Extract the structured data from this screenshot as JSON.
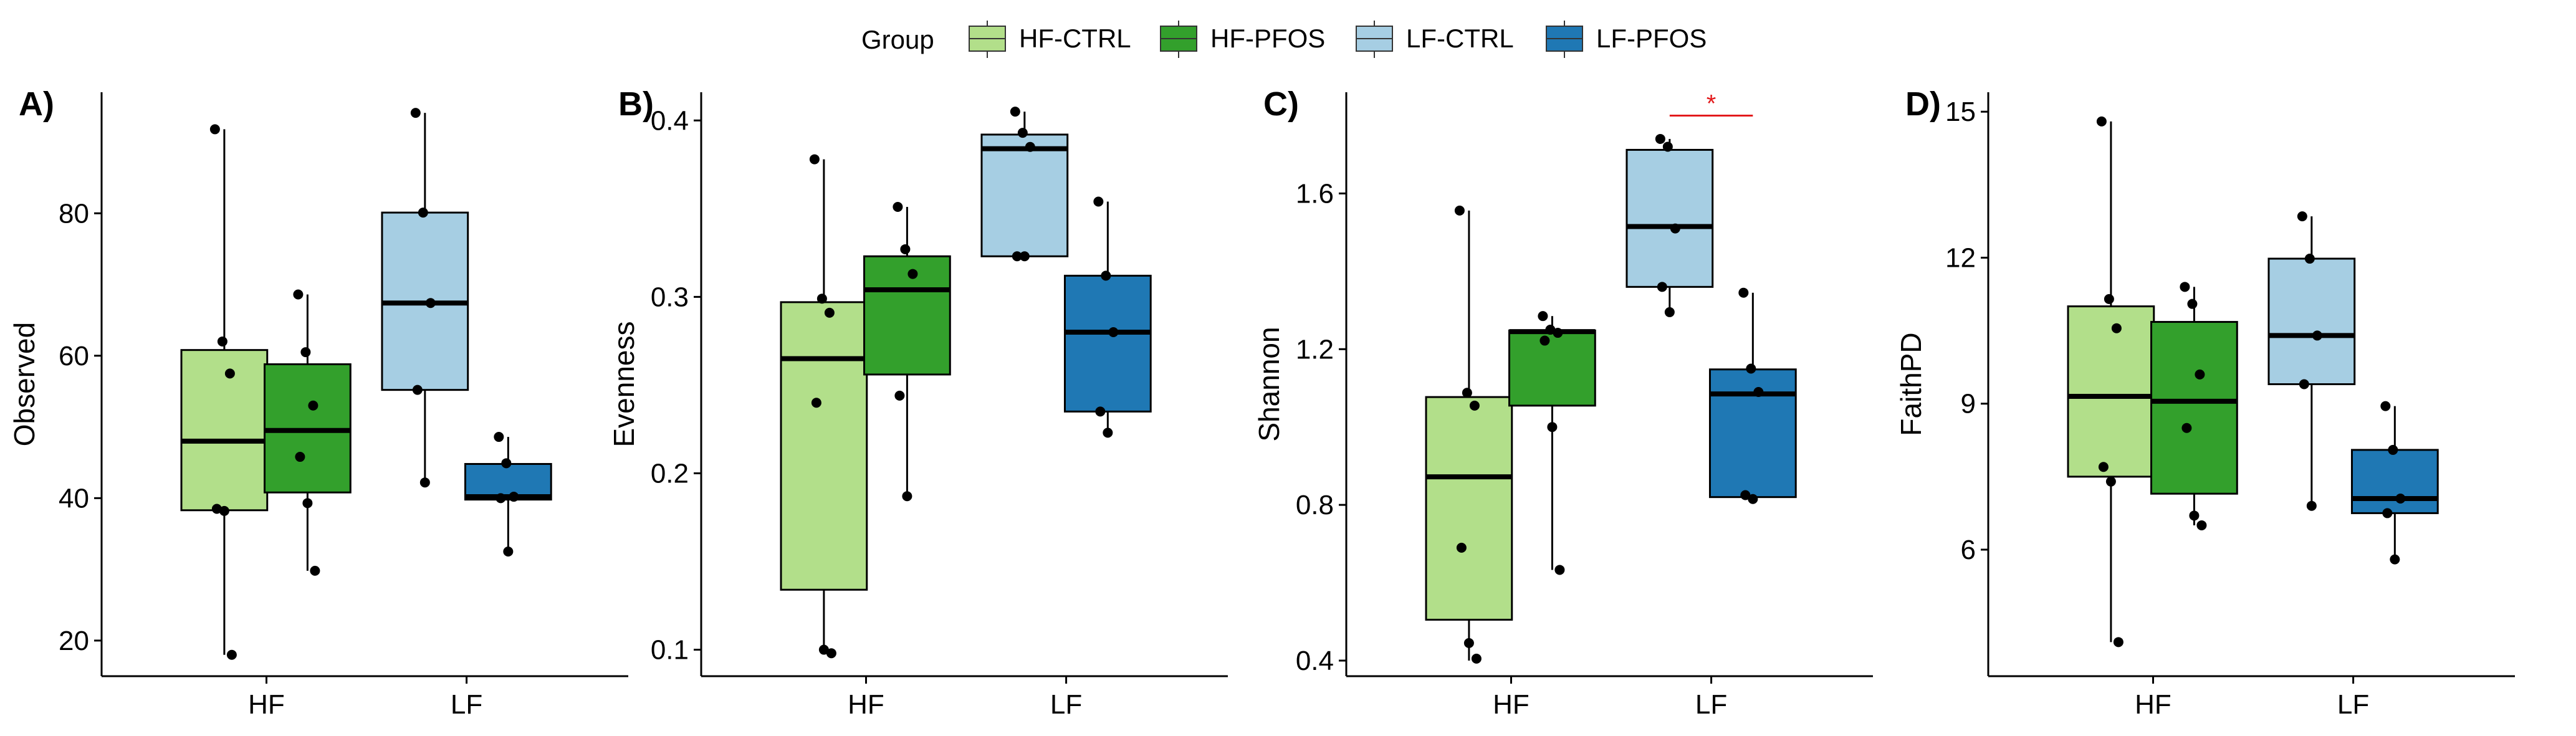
{
  "legend": {
    "title": "Group",
    "items": [
      {
        "label": "HF-CTRL",
        "color": "#b2df8a"
      },
      {
        "label": "HF-PFOS",
        "color": "#33a02c"
      },
      {
        "label": "LF-CTRL",
        "color": "#a6cee3"
      },
      {
        "label": "LF-PFOS",
        "color": "#1f78b4"
      }
    ]
  },
  "chart_data": [
    {
      "type": "box",
      "panel": "A)",
      "ylabel": "Observed",
      "xlabel": "",
      "categories": [
        "HF",
        "LF"
      ],
      "yticks": [
        20,
        40,
        60,
        80
      ],
      "ylim": [
        15,
        97
      ],
      "series": [
        {
          "name": "HF-CTRL",
          "category": "HF",
          "min": 18,
          "q1": 38.3,
          "median": 48,
          "q3": 60.8,
          "max": 91.8,
          "points": [
            91.8,
            62,
            57.5,
            38.5,
            38.2,
            18
          ]
        },
        {
          "name": "HF-PFOS",
          "category": "HF",
          "min": 29.8,
          "q1": 40.8,
          "median": 49.5,
          "q3": 58.8,
          "max": 68.6,
          "points": [
            68.6,
            60.5,
            53,
            45.8,
            39.3,
            29.8
          ]
        },
        {
          "name": "LF-CTRL",
          "category": "LF",
          "min": 42.2,
          "q1": 55.2,
          "median": 67.4,
          "q3": 80.1,
          "max": 94.1,
          "points": [
            94.1,
            80.1,
            67.4,
            55.2,
            42.2
          ]
        },
        {
          "name": "LF-PFOS",
          "category": "LF",
          "min": 32.5,
          "q1": 39.8,
          "median": 40.2,
          "q3": 44.8,
          "max": 48.6,
          "points": [
            48.6,
            44.9,
            40.2,
            40,
            32.5
          ]
        }
      ]
    },
    {
      "type": "box",
      "panel": "B)",
      "ylabel": "Evenness",
      "xlabel": "",
      "categories": [
        "HF",
        "LF"
      ],
      "yticks": [
        0.1,
        0.2,
        0.3,
        0.4
      ],
      "ylim": [
        0.085,
        0.416
      ],
      "series": [
        {
          "name": "HF-CTRL",
          "category": "HF",
          "min": 0.098,
          "q1": 0.134,
          "median": 0.265,
          "q3": 0.297,
          "max": 0.378,
          "points": [
            0.378,
            0.299,
            0.291,
            0.24,
            0.1,
            0.098
          ]
        },
        {
          "name": "HF-PFOS",
          "category": "HF",
          "min": 0.187,
          "q1": 0.256,
          "median": 0.304,
          "q3": 0.323,
          "max": 0.351,
          "points": [
            0.351,
            0.327,
            0.313,
            0.244,
            0.187
          ]
        },
        {
          "name": "LF-CTRL",
          "category": "LF",
          "min": 0.323,
          "q1": 0.323,
          "median": 0.384,
          "q3": 0.392,
          "max": 0.405,
          "points": [
            0.405,
            0.393,
            0.385,
            0.323,
            0.323
          ]
        },
        {
          "name": "LF-PFOS",
          "category": "LF",
          "min": 0.223,
          "q1": 0.235,
          "median": 0.28,
          "q3": 0.312,
          "max": 0.354,
          "points": [
            0.354,
            0.312,
            0.28,
            0.235,
            0.223
          ]
        }
      ]
    },
    {
      "type": "box",
      "panel": "C)",
      "ylabel": "Shannon",
      "xlabel": "",
      "categories": [
        "HF",
        "LF"
      ],
      "yticks": [
        0.4,
        0.8,
        1.2,
        1.6
      ],
      "ylim": [
        0.36,
        1.86
      ],
      "significance": {
        "label": "*",
        "from": "LF-CTRL",
        "to": "LF-PFOS",
        "y": 1.8
      },
      "series": [
        {
          "name": "HF-CTRL",
          "category": "HF",
          "min": 0.4,
          "q1": 0.505,
          "median": 0.872,
          "q3": 1.077,
          "max": 1.556,
          "points": [
            1.556,
            1.088,
            1.055,
            0.69,
            0.445,
            0.405
          ]
        },
        {
          "name": "HF-PFOS",
          "category": "HF",
          "min": 0.633,
          "q1": 1.055,
          "median": 1.245,
          "q3": 1.248,
          "max": 1.285,
          "points": [
            1.285,
            1.25,
            1.242,
            1.222,
            1.0,
            0.633
          ]
        },
        {
          "name": "LF-CTRL",
          "category": "LF",
          "min": 1.295,
          "q1": 1.36,
          "median": 1.515,
          "q3": 1.712,
          "max": 1.74,
          "points": [
            1.74,
            1.72,
            1.51,
            1.36,
            1.295
          ]
        },
        {
          "name": "LF-PFOS",
          "category": "LF",
          "min": 0.815,
          "q1": 0.82,
          "median": 1.085,
          "q3": 1.148,
          "max": 1.345,
          "points": [
            1.345,
            1.15,
            1.09,
            0.825,
            0.815
          ]
        }
      ]
    },
    {
      "type": "box",
      "panel": "D)",
      "ylabel": "FaithPD",
      "xlabel": "",
      "categories": [
        "HF",
        "LF"
      ],
      "yticks": [
        6,
        9,
        12,
        15
      ],
      "ylim": [
        3.4,
        15.4
      ],
      "series": [
        {
          "name": "HF-CTRL",
          "category": "HF",
          "min": 4.1,
          "q1": 7.5,
          "median": 9.15,
          "q3": 11.0,
          "max": 14.8,
          "points": [
            14.8,
            11.15,
            10.55,
            7.7,
            7.4,
            4.1
          ]
        },
        {
          "name": "HF-PFOS",
          "category": "HF",
          "min": 6.5,
          "q1": 7.15,
          "median": 9.05,
          "q3": 10.68,
          "max": 11.4,
          "points": [
            11.4,
            11.05,
            9.6,
            8.5,
            6.7,
            6.5
          ]
        },
        {
          "name": "LF-CTRL",
          "category": "LF",
          "min": 6.9,
          "q1": 9.4,
          "median": 10.4,
          "q3": 11.98,
          "max": 12.85,
          "points": [
            12.85,
            11.98,
            10.4,
            9.4,
            6.9
          ]
        },
        {
          "name": "LF-PFOS",
          "category": "LF",
          "min": 5.8,
          "q1": 6.75,
          "median": 7.05,
          "q3": 8.05,
          "max": 8.95,
          "points": [
            8.95,
            8.05,
            7.05,
            6.75,
            5.8
          ]
        }
      ]
    }
  ]
}
